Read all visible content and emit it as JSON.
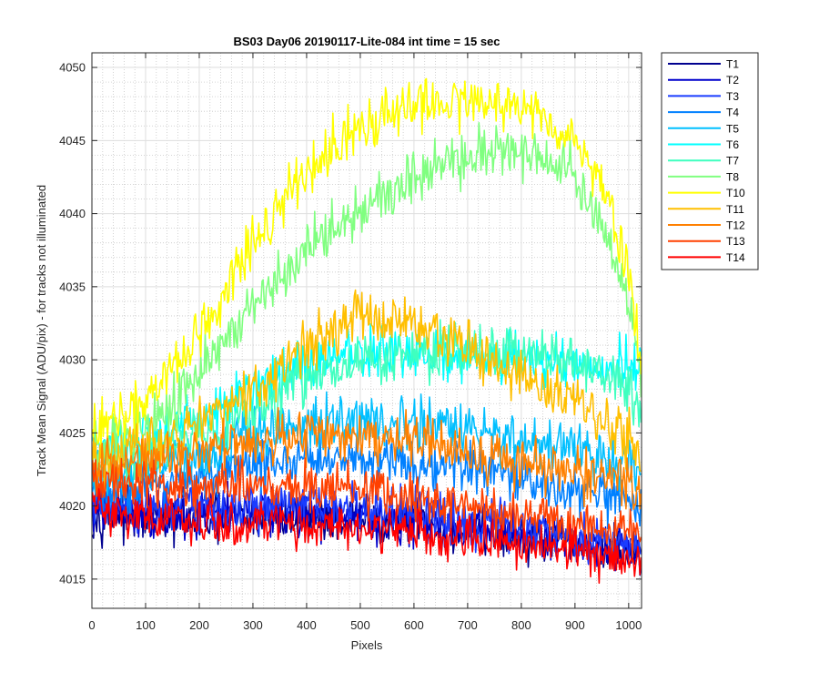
{
  "chart_data": {
    "type": "line",
    "title": "BS03 Day06 20190117-Lite-084 int time = 15 sec",
    "xlabel": "Pixels",
    "ylabel": "Track Mean Signal (ADU/pix) - for tracks not illuminated",
    "xlim": [
      0,
      1024
    ],
    "ylim": [
      4013,
      4051
    ],
    "xticks": [
      0,
      100,
      200,
      300,
      400,
      500,
      600,
      700,
      800,
      900,
      1000
    ],
    "yticks": [
      4015,
      4020,
      4025,
      4030,
      4035,
      4040,
      4045,
      4050
    ],
    "grid": true,
    "minor_grid": true,
    "legend_position": "outside-right",
    "series": [
      {
        "name": "T1",
        "color": "#00008f",
        "noise": 1.6,
        "x": [
          0,
          100,
          200,
          300,
          400,
          500,
          600,
          700,
          800,
          900,
          1000,
          1024
        ],
        "y": [
          4019.5,
          4019.2,
          4019.0,
          4019.2,
          4019.3,
          4019.0,
          4018.8,
          4018.3,
          4017.8,
          4017.3,
          4016.8,
          4016.5
        ]
      },
      {
        "name": "T2",
        "color": "#0000cc",
        "noise": 1.6,
        "x": [
          0,
          100,
          200,
          300,
          400,
          500,
          600,
          700,
          800,
          900,
          1000,
          1024
        ],
        "y": [
          4019.8,
          4019.5,
          4019.4,
          4019.6,
          4019.6,
          4019.3,
          4019.0,
          4018.6,
          4018.1,
          4017.6,
          4017.0,
          4016.7
        ]
      },
      {
        "name": "T3",
        "color": "#1a3cff",
        "noise": 1.6,
        "x": [
          0,
          100,
          200,
          300,
          400,
          500,
          600,
          700,
          800,
          900,
          1000,
          1024
        ],
        "y": [
          4020.0,
          4019.8,
          4019.8,
          4020.0,
          4020.0,
          4019.8,
          4019.5,
          4019.0,
          4018.5,
          4018.0,
          4017.5,
          4017.2
        ]
      },
      {
        "name": "T4",
        "color": "#0080ff",
        "noise": 1.7,
        "x": [
          0,
          100,
          200,
          300,
          400,
          500,
          600,
          700,
          800,
          900,
          1000,
          1024
        ],
        "y": [
          4021.0,
          4021.3,
          4022.0,
          4022.8,
          4023.2,
          4023.4,
          4023.0,
          4022.5,
          4021.8,
          4021.0,
          4020.0,
          4019.5
        ]
      },
      {
        "name": "T5",
        "color": "#00bfff",
        "noise": 1.7,
        "x": [
          0,
          100,
          200,
          300,
          400,
          500,
          600,
          700,
          800,
          900,
          1000,
          1024
        ],
        "y": [
          4022.0,
          4022.5,
          4023.5,
          4024.8,
          4025.5,
          4025.8,
          4025.6,
          4025.2,
          4024.6,
          4023.8,
          4022.5,
          4021.8
        ]
      },
      {
        "name": "T6",
        "color": "#00ffff",
        "noise": 1.8,
        "x": [
          0,
          100,
          200,
          300,
          400,
          500,
          600,
          700,
          800,
          900,
          1000,
          1024
        ],
        "y": [
          4024.0,
          4024.5,
          4026.0,
          4028.0,
          4029.8,
          4030.5,
          4030.5,
          4030.2,
          4029.8,
          4029.6,
          4029.5,
          4029.3
        ]
      },
      {
        "name": "T7",
        "color": "#3fffbf",
        "noise": 1.8,
        "x": [
          0,
          100,
          200,
          300,
          400,
          500,
          600,
          700,
          800,
          900,
          1000,
          1024
        ],
        "y": [
          4023.0,
          4023.5,
          4024.5,
          4026.5,
          4028.5,
          4029.8,
          4030.3,
          4030.5,
          4030.5,
          4030.0,
          4028.0,
          4026.0
        ]
      },
      {
        "name": "T8",
        "color": "#80ff80",
        "noise": 1.9,
        "x": [
          0,
          100,
          200,
          300,
          400,
          500,
          600,
          700,
          800,
          900,
          950,
          1000,
          1024
        ],
        "y": [
          4024.0,
          4025.5,
          4029.0,
          4033.5,
          4037.5,
          4040.5,
          4042.5,
          4044.0,
          4044.5,
          4042.5,
          4039.5,
          4034.0,
          4029.0
        ]
      },
      {
        "name": "T10",
        "color": "#ffff00",
        "noise": 1.9,
        "x": [
          0,
          100,
          200,
          300,
          400,
          500,
          600,
          700,
          800,
          900,
          950,
          1000,
          1024
        ],
        "y": [
          4025.0,
          4027.0,
          4032.0,
          4038.0,
          4043.0,
          4046.0,
          4047.5,
          4047.8,
          4047.3,
          4045.0,
          4042.0,
          4036.0,
          4030.0
        ]
      },
      {
        "name": "T11",
        "color": "#ffbf00",
        "noise": 1.8,
        "x": [
          0,
          100,
          200,
          300,
          400,
          500,
          600,
          700,
          800,
          900,
          1000,
          1024
        ],
        "y": [
          4023.0,
          4024.0,
          4025.5,
          4028.0,
          4031.0,
          4033.0,
          4032.5,
          4030.5,
          4029.0,
          4027.0,
          4024.5,
          4023.0
        ]
      },
      {
        "name": "T12",
        "color": "#ff8000",
        "noise": 1.7,
        "x": [
          0,
          100,
          200,
          300,
          400,
          500,
          600,
          700,
          800,
          900,
          1000,
          1024
        ],
        "y": [
          4022.5,
          4023.0,
          4023.8,
          4024.5,
          4024.8,
          4024.6,
          4024.3,
          4023.7,
          4023.0,
          4022.3,
          4021.5,
          4021.0
        ]
      },
      {
        "name": "T13",
        "color": "#ff4000",
        "noise": 1.6,
        "x": [
          0,
          100,
          200,
          300,
          400,
          500,
          600,
          700,
          800,
          900,
          1000,
          1024
        ],
        "y": [
          4021.5,
          4021.3,
          4021.3,
          4021.4,
          4021.3,
          4021.0,
          4020.6,
          4020.0,
          4019.4,
          4018.8,
          4018.0,
          4017.6
        ]
      },
      {
        "name": "T14",
        "color": "#ff0000",
        "noise": 1.5,
        "x": [
          0,
          100,
          200,
          300,
          400,
          500,
          600,
          700,
          800,
          900,
          1000,
          1024
        ],
        "y": [
          4020.0,
          4019.2,
          4018.8,
          4018.8,
          4018.7,
          4018.4,
          4018.1,
          4017.7,
          4017.3,
          4016.9,
          4016.2,
          4015.8
        ]
      }
    ]
  }
}
